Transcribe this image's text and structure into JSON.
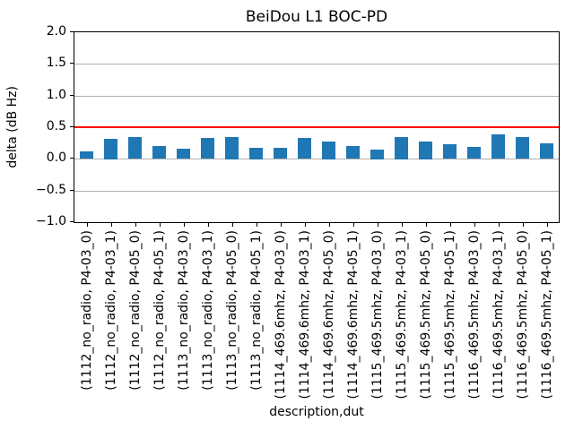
{
  "chart_data": {
    "type": "bar",
    "title": "BeiDou L1 BOC-PD",
    "xlabel": "description,dut",
    "ylabel": "delta (dB Hz)",
    "ylim": [
      -1.0,
      2.0
    ],
    "yticks": [
      2.0,
      1.5,
      1.0,
      0.5,
      0.0,
      -0.5,
      -1.0
    ],
    "grid": true,
    "legend": "none",
    "bar_color": "#1f77b4",
    "grid_color": "#b0b0b0",
    "threshold_line": {
      "y": 0.5,
      "color": "#ff0000"
    },
    "categories": [
      "(1112_no_radio, P4-03_0)",
      "(1112_no_radio, P4-03_1)",
      "(1112_no_radio, P4-05_0)",
      "(1112_no_radio, P4-05_1)",
      "(1113_no_radio, P4-03_0)",
      "(1113_no_radio, P4-03_1)",
      "(1113_no_radio, P4-05_0)",
      "(1113_no_radio, P4-05_1)",
      "(1114_469.6mhz, P4-03_0)",
      "(1114_469.6mhz, P4-03_1)",
      "(1114_469.6mhz, P4-05_0)",
      "(1114_469.6mhz, P4-05_1)",
      "(1115_469.5mhz, P4-03_0)",
      "(1115_469.5mhz, P4-03_1)",
      "(1115_469.5mhz, P4-05_0)",
      "(1115_469.5mhz, P4-05_1)",
      "(1116_469.5mhz, P4-03_0)",
      "(1116_469.5mhz, P4-03_1)",
      "(1116_469.5mhz, P4-05_0)",
      "(1116_469.5mhz, P4-05_1)"
    ],
    "values": [
      0.12,
      0.32,
      0.34,
      0.2,
      0.16,
      0.33,
      0.35,
      0.18,
      0.17,
      0.33,
      0.28,
      0.2,
      0.15,
      0.35,
      0.28,
      0.23,
      0.19,
      0.38,
      0.34,
      0.24
    ]
  }
}
